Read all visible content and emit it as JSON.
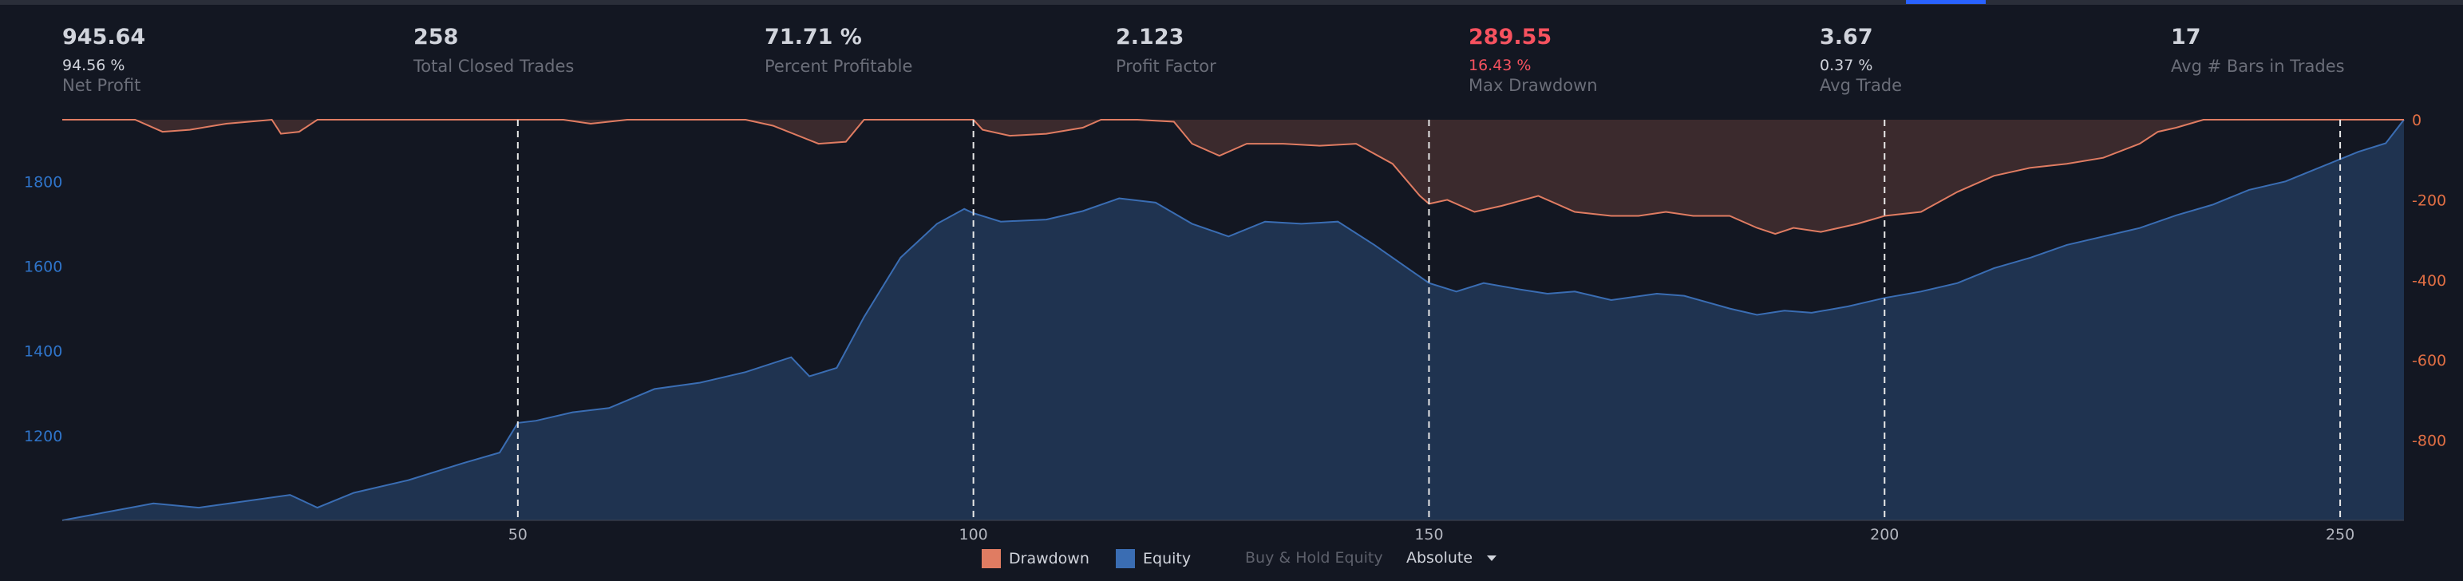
{
  "stats": [
    {
      "value": "945.64",
      "sub": "94.56 %",
      "label": "Net Profit",
      "red": false
    },
    {
      "value": "258",
      "sub": "",
      "label": "Total Closed Trades",
      "red": false
    },
    {
      "value": "71.71 %",
      "sub": "",
      "label": "Percent Profitable",
      "red": false
    },
    {
      "value": "2.123",
      "sub": "",
      "label": "Profit Factor",
      "red": false
    },
    {
      "value": "289.55",
      "sub": "16.43 %",
      "label": "Max Drawdown",
      "red": true
    },
    {
      "value": "3.67",
      "sub": "0.37 %",
      "label": "Avg Trade",
      "red": false
    },
    {
      "value": "17",
      "sub": "",
      "label": "Avg # Bars in Trades",
      "red": false
    }
  ],
  "legend": {
    "drawdown": "Drawdown",
    "equity": "Equity",
    "buy_hold": "Buy & Hold Equity",
    "mode": "Absolute"
  },
  "colors": {
    "equity_fill": "#1f3350",
    "equity_line": "#3a6db3",
    "drawdown_fill": "#3b2a2d",
    "drawdown_line": "#e07c62",
    "left_axis": "#2f74c9",
    "right_axis": "#e26f44"
  },
  "chart_data": {
    "type": "area",
    "x_ticks": [
      50,
      100,
      150,
      200,
      250
    ],
    "xlim": [
      0,
      257
    ],
    "y_left": {
      "ticks": [
        1200,
        1400,
        1600,
        1800
      ],
      "lim": [
        1000,
        1945.64
      ]
    },
    "y_right": {
      "ticks": [
        0,
        -200,
        -400,
        -600,
        -800
      ],
      "lim": [
        -1000,
        0
      ]
    },
    "vertical_markers": [
      50,
      100,
      150,
      200,
      250
    ],
    "series": [
      {
        "name": "Equity",
        "axis": "left",
        "points": [
          [
            0,
            1000
          ],
          [
            5,
            1020
          ],
          [
            10,
            1040
          ],
          [
            15,
            1030
          ],
          [
            20,
            1045
          ],
          [
            25,
            1060
          ],
          [
            28,
            1030
          ],
          [
            32,
            1065
          ],
          [
            38,
            1095
          ],
          [
            44,
            1135
          ],
          [
            48,
            1160
          ],
          [
            50,
            1230
          ],
          [
            52,
            1235
          ],
          [
            56,
            1255
          ],
          [
            60,
            1265
          ],
          [
            65,
            1310
          ],
          [
            70,
            1325
          ],
          [
            75,
            1350
          ],
          [
            80,
            1385
          ],
          [
            82,
            1340
          ],
          [
            85,
            1360
          ],
          [
            88,
            1480
          ],
          [
            92,
            1620
          ],
          [
            96,
            1700
          ],
          [
            99,
            1735
          ],
          [
            100,
            1725
          ],
          [
            103,
            1705
          ],
          [
            108,
            1710
          ],
          [
            112,
            1730
          ],
          [
            116,
            1760
          ],
          [
            120,
            1750
          ],
          [
            124,
            1700
          ],
          [
            128,
            1670
          ],
          [
            132,
            1705
          ],
          [
            136,
            1700
          ],
          [
            140,
            1705
          ],
          [
            144,
            1650
          ],
          [
            148,
            1590
          ],
          [
            150,
            1560
          ],
          [
            153,
            1540
          ],
          [
            156,
            1560
          ],
          [
            160,
            1545
          ],
          [
            163,
            1535
          ],
          [
            166,
            1540
          ],
          [
            170,
            1520
          ],
          [
            175,
            1535
          ],
          [
            178,
            1530
          ],
          [
            183,
            1500
          ],
          [
            186,
            1485
          ],
          [
            189,
            1495
          ],
          [
            192,
            1490
          ],
          [
            196,
            1505
          ],
          [
            200,
            1525
          ],
          [
            204,
            1540
          ],
          [
            208,
            1560
          ],
          [
            212,
            1595
          ],
          [
            216,
            1620
          ],
          [
            220,
            1650
          ],
          [
            224,
            1670
          ],
          [
            228,
            1690
          ],
          [
            232,
            1720
          ],
          [
            236,
            1745
          ],
          [
            240,
            1780
          ],
          [
            244,
            1800
          ],
          [
            248,
            1835
          ],
          [
            252,
            1870
          ],
          [
            255,
            1890
          ],
          [
            257,
            1945.64
          ]
        ]
      },
      {
        "name": "Drawdown",
        "axis": "right",
        "points": [
          [
            0,
            0
          ],
          [
            8,
            0
          ],
          [
            11,
            -30
          ],
          [
            14,
            -25
          ],
          [
            18,
            -10
          ],
          [
            23,
            0
          ],
          [
            24,
            -35
          ],
          [
            26,
            -30
          ],
          [
            28,
            0
          ],
          [
            35,
            0
          ],
          [
            45,
            0
          ],
          [
            55,
            0
          ],
          [
            58,
            -10
          ],
          [
            62,
            0
          ],
          [
            75,
            0
          ],
          [
            78,
            -15
          ],
          [
            83,
            -60
          ],
          [
            86,
            -55
          ],
          [
            88,
            0
          ],
          [
            96,
            0
          ],
          [
            100,
            0
          ],
          [
            101,
            -25
          ],
          [
            104,
            -40
          ],
          [
            108,
            -35
          ],
          [
            112,
            -20
          ],
          [
            114,
            0
          ],
          [
            118,
            0
          ],
          [
            122,
            -5
          ],
          [
            124,
            -60
          ],
          [
            127,
            -90
          ],
          [
            130,
            -60
          ],
          [
            134,
            -60
          ],
          [
            138,
            -65
          ],
          [
            142,
            -60
          ],
          [
            146,
            -110
          ],
          [
            149,
            -190
          ],
          [
            150,
            -210
          ],
          [
            152,
            -200
          ],
          [
            155,
            -230
          ],
          [
            158,
            -215
          ],
          [
            162,
            -190
          ],
          [
            166,
            -230
          ],
          [
            170,
            -240
          ],
          [
            173,
            -240
          ],
          [
            176,
            -230
          ],
          [
            179,
            -240
          ],
          [
            183,
            -240
          ],
          [
            186,
            -270
          ],
          [
            188,
            -285
          ],
          [
            190,
            -270
          ],
          [
            193,
            -280
          ],
          [
            197,
            -260
          ],
          [
            200,
            -240
          ],
          [
            204,
            -230
          ],
          [
            208,
            -180
          ],
          [
            212,
            -140
          ],
          [
            216,
            -120
          ],
          [
            220,
            -110
          ],
          [
            224,
            -95
          ],
          [
            228,
            -60
          ],
          [
            230,
            -30
          ],
          [
            232,
            -20
          ],
          [
            235,
            0
          ],
          [
            240,
            0
          ],
          [
            245,
            0
          ],
          [
            250,
            0
          ],
          [
            257,
            0
          ]
        ]
      }
    ]
  }
}
